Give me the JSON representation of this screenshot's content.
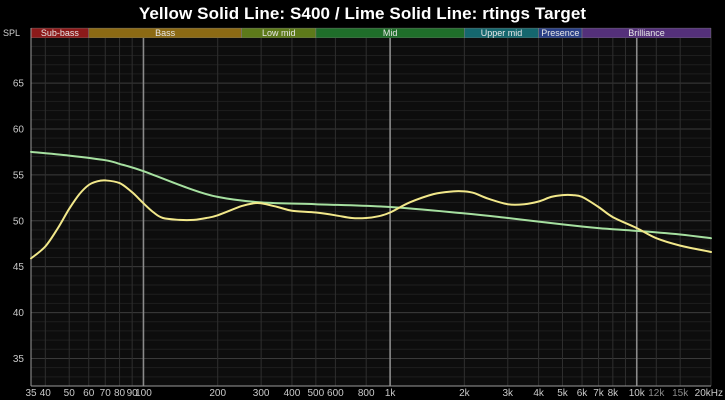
{
  "chart_data": {
    "type": "line",
    "title": "Yellow Solid Line: S400 / Lime Solid Line: rtings Target",
    "ylabel": "SPL",
    "xscale": "log",
    "xlim": [
      35,
      20000
    ],
    "ylim": [
      32,
      71
    ],
    "grid": true,
    "y_ticks": [
      35,
      40,
      45,
      50,
      55,
      60,
      65
    ],
    "x_ticks": [
      {
        "value": 35,
        "label": "35"
      },
      {
        "value": 40,
        "label": "40"
      },
      {
        "value": 50,
        "label": "50"
      },
      {
        "value": 60,
        "label": "60"
      },
      {
        "value": 70,
        "label": "70"
      },
      {
        "value": 80,
        "label": "80"
      },
      {
        "value": 90,
        "label": "90"
      },
      {
        "value": 100,
        "label": "100"
      },
      {
        "value": 200,
        "label": "200"
      },
      {
        "value": 300,
        "label": "300"
      },
      {
        "value": 400,
        "label": "400"
      },
      {
        "value": 500,
        "label": "500"
      },
      {
        "value": 600,
        "label": "600"
      },
      {
        "value": 800,
        "label": "800"
      },
      {
        "value": 1000,
        "label": "1k"
      },
      {
        "value": 2000,
        "label": "2k"
      },
      {
        "value": 3000,
        "label": "3k"
      },
      {
        "value": 4000,
        "label": "4k"
      },
      {
        "value": 5000,
        "label": "5k"
      },
      {
        "value": 6000,
        "label": "6k"
      },
      {
        "value": 7000,
        "label": "7k"
      },
      {
        "value": 8000,
        "label": "8k"
      },
      {
        "value": 10000,
        "label": "10k"
      },
      {
        "value": 12000,
        "label": "12k",
        "dim": true
      },
      {
        "value": 15000,
        "label": "15k",
        "dim": true
      },
      {
        "value": 20000,
        "label": "20kHz"
      }
    ],
    "bands": [
      {
        "label": "Sub-bass",
        "from": 20,
        "to": 60,
        "color": "#8c1a1a"
      },
      {
        "label": "Bass",
        "from": 60,
        "to": 250,
        "color": "#8c6a14"
      },
      {
        "label": "Low mid",
        "from": 250,
        "to": 500,
        "color": "#5d7a1a"
      },
      {
        "label": "Mid",
        "from": 500,
        "to": 2000,
        "color": "#1f6e2a"
      },
      {
        "label": "Upper mid",
        "from": 2000,
        "to": 4000,
        "color": "#15676e"
      },
      {
        "label": "Presence",
        "from": 4000,
        "to": 6000,
        "color": "#2a3f86"
      },
      {
        "label": "Brilliance",
        "from": 6000,
        "to": 20000,
        "color": "#54307a"
      }
    ],
    "series": [
      {
        "name": "S400",
        "color": "#f2e88a",
        "x": [
          35,
          40,
          45,
          50,
          55,
          60,
          65,
          70,
          80,
          90,
          100,
          110,
          120,
          140,
          160,
          180,
          200,
          250,
          280,
          300,
          350,
          400,
          500,
          600,
          700,
          800,
          900,
          1000,
          1200,
          1500,
          1800,
          2000,
          2200,
          2500,
          3000,
          3500,
          4000,
          4500,
          5000,
          5500,
          6000,
          7000,
          8000,
          10000,
          12000,
          15000,
          20000
        ],
        "y": [
          45.9,
          47.2,
          49.2,
          51.3,
          52.9,
          53.9,
          54.3,
          54.4,
          54.1,
          53.1,
          51.9,
          50.9,
          50.3,
          50.1,
          50.1,
          50.3,
          50.6,
          51.6,
          51.9,
          51.9,
          51.5,
          51.1,
          50.9,
          50.6,
          50.3,
          50.3,
          50.5,
          50.9,
          52.0,
          52.9,
          53.2,
          53.2,
          53.0,
          52.4,
          51.8,
          51.8,
          52.1,
          52.6,
          52.8,
          52.8,
          52.6,
          51.5,
          50.4,
          49.2,
          48.1,
          47.3,
          46.6
        ]
      },
      {
        "name": "rtings Target",
        "color": "#a6e0a0",
        "x": [
          35,
          50,
          70,
          80,
          100,
          150,
          200,
          300,
          500,
          1000,
          2000,
          3000,
          5000,
          7000,
          10000,
          15000,
          20000
        ],
        "y": [
          57.5,
          57.1,
          56.6,
          56.2,
          55.4,
          53.6,
          52.6,
          52.0,
          51.8,
          51.5,
          50.8,
          50.3,
          49.6,
          49.2,
          48.9,
          48.5,
          48.1
        ]
      }
    ]
  }
}
